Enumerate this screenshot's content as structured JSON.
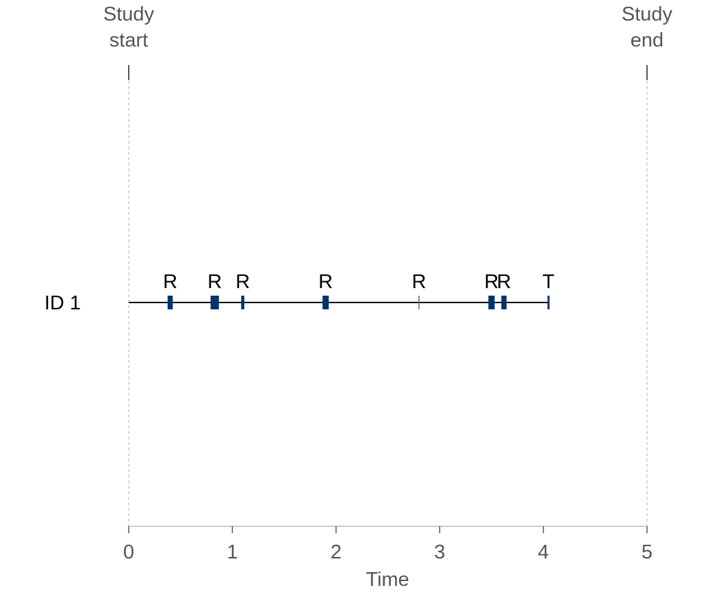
{
  "chart_data": {
    "type": "timeline",
    "xlabel": "Time",
    "xlim": [
      0,
      5
    ],
    "x_ticks": [
      0,
      1,
      2,
      3,
      4,
      5
    ],
    "x_tick_labels": [
      "0",
      "1",
      "2",
      "3",
      "4",
      "5"
    ],
    "grid": false,
    "reference_lines": [
      {
        "x": 0,
        "label_line1": "Study",
        "label_line2": "start"
      },
      {
        "x": 5,
        "label_line1": "Study",
        "label_line2": "end"
      }
    ],
    "subjects": [
      {
        "label": "ID 1",
        "start": 0,
        "end": 4.05,
        "events": [
          {
            "time": 0.4,
            "duration": 0.05,
            "label": "R"
          },
          {
            "time": 0.83,
            "duration": 0.08,
            "label": "R"
          },
          {
            "time": 1.1,
            "duration": 0.03,
            "label": "R"
          },
          {
            "time": 1.9,
            "duration": 0.06,
            "label": "R"
          },
          {
            "time": 2.8,
            "duration": 0.0,
            "label": "R"
          },
          {
            "time": 3.5,
            "duration": 0.06,
            "label": "R"
          },
          {
            "time": 3.62,
            "duration": 0.05,
            "label": "R"
          },
          {
            "time": 4.05,
            "duration": 0.0,
            "label": "T"
          }
        ]
      }
    ],
    "colors": {
      "event": "#003366",
      "thin_event": "#4a6c96",
      "subject_line": "#000000",
      "reference_line": "#c8c8c8",
      "axis": "#bbbbbb",
      "text": "#555555"
    }
  }
}
